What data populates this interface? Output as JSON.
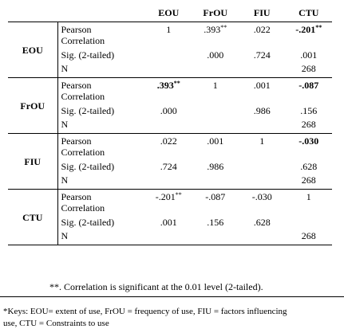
{
  "headers": [
    "EOU",
    "FrOU",
    "FIU",
    "CTU"
  ],
  "stat_labels": {
    "pearson_line1": "Pearson",
    "pearson_line2": "Correlation",
    "sig": "Sig. (2-tailed)",
    "n": "N"
  },
  "rows": [
    {
      "var": "EOU",
      "corr": [
        "1",
        ".393",
        ".022",
        "-.201"
      ],
      "corr_sup": [
        "",
        "**",
        "",
        "**"
      ],
      "sig": [
        "",
        ".000",
        ".724",
        ".001"
      ],
      "n": [
        "",
        "",
        "",
        "268"
      ]
    },
    {
      "var": "FrOU",
      "corr": [
        ".393",
        "1",
        ".001",
        "-.087"
      ],
      "corr_sup": [
        "**",
        "",
        "",
        ""
      ],
      "sig": [
        ".000",
        "",
        ".986",
        ".156"
      ],
      "n": [
        "",
        "",
        "",
        "268"
      ]
    },
    {
      "var": "FIU",
      "corr": [
        ".022",
        ".001",
        "1",
        "-.030"
      ],
      "corr_sup": [
        "",
        "",
        "",
        ""
      ],
      "sig": [
        ".724",
        ".986",
        "",
        ".628"
      ],
      "n": [
        "",
        "",
        "",
        "268"
      ]
    },
    {
      "var": "CTU",
      "corr": [
        "-.201",
        "-.087",
        "-.030",
        "1"
      ],
      "corr_sup": [
        "**",
        "",
        "",
        ""
      ],
      "sig": [
        ".001",
        ".156",
        ".628",
        ""
      ],
      "n": [
        "",
        "",
        "",
        "268"
      ]
    }
  ],
  "note": "**. Correlation is significant at the 0.01 level (2-tailed).",
  "keys_line1": "*Keys: EOU= extent of use, FrOU = frequency of use, FIU = factors influencing",
  "keys_line2": "use, CTU = Constraints to use"
}
